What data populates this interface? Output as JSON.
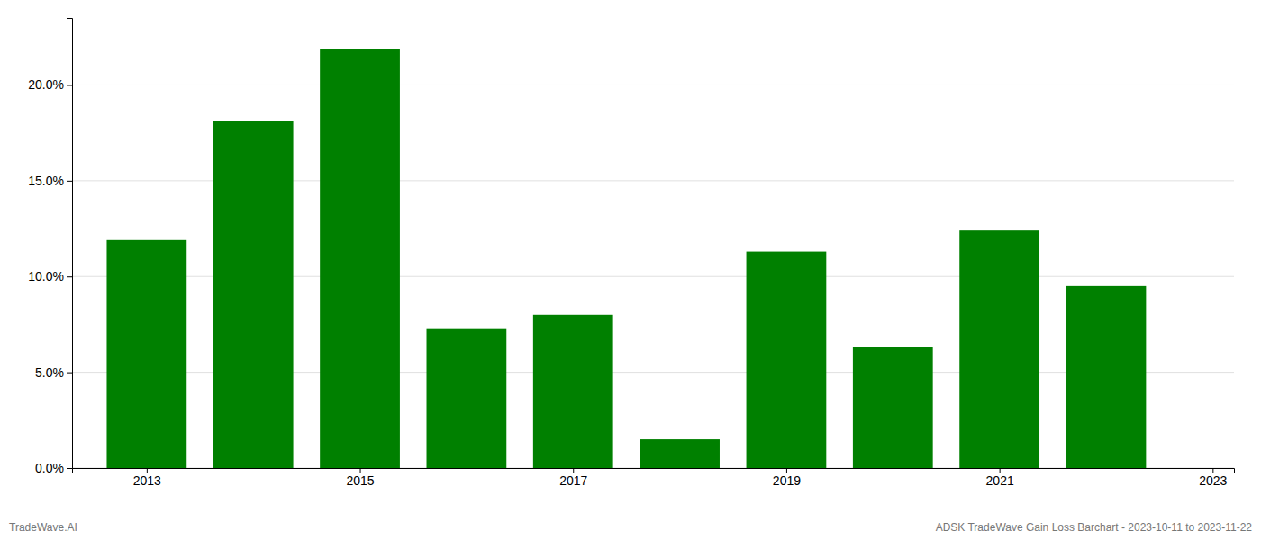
{
  "chart_data": {
    "type": "bar",
    "x": [
      2013,
      2014,
      2015,
      2016,
      2017,
      2018,
      2019,
      2020,
      2021,
      2022
    ],
    "values": [
      0.119,
      0.181,
      0.219,
      0.073,
      0.08,
      0.015,
      0.113,
      0.063,
      0.124,
      0.095
    ],
    "color": "#008000",
    "xlim": [
      2012.3,
      2023.2
    ],
    "xticks": [
      2013,
      2015,
      2017,
      2019,
      2021,
      2023
    ],
    "ylim": [
      0,
      0.235
    ],
    "yticks": [
      {
        "value": 0.0,
        "label": "0.0%"
      },
      {
        "value": 0.05,
        "label": "5.0%"
      },
      {
        "value": 0.1,
        "label": "10.0%"
      },
      {
        "value": 0.15,
        "label": "15.0%"
      },
      {
        "value": 0.2,
        "label": "20.0%"
      }
    ],
    "grid": true,
    "annotations": [
      "TradeWave.AI",
      "ADSK TradeWave Gain Loss Barchart - 2023-10-11 to 2023-11-22"
    ]
  }
}
